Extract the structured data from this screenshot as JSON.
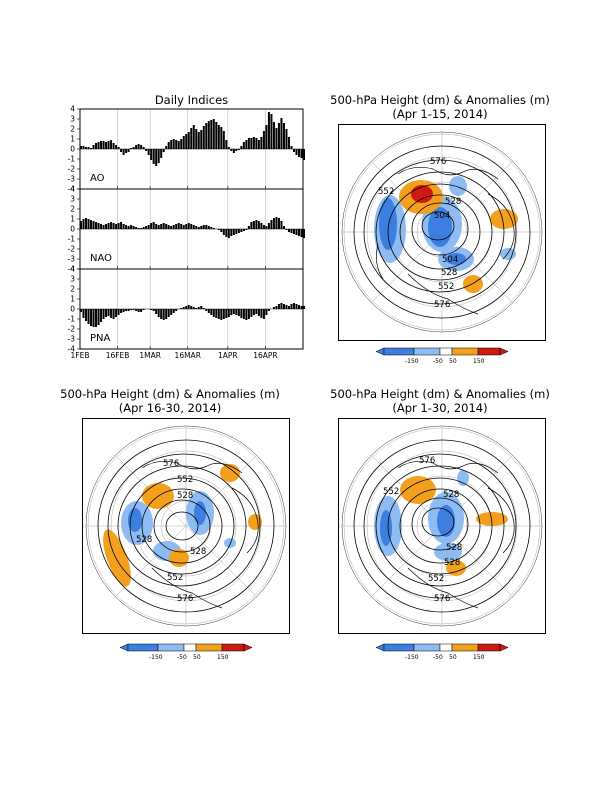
{
  "indices_panel": {
    "title": "Daily Indices",
    "yticks": [
      4,
      3,
      2,
      1,
      0,
      -1,
      -2,
      -3,
      -4
    ],
    "xtick_labels": [
      "1FEB",
      "16FEB",
      "1MAR",
      "16MAR",
      "1APR",
      "16APR"
    ]
  },
  "chart_data": [
    {
      "type": "bar",
      "name": "AO",
      "x_start": "1FEB",
      "x_end": "30APR",
      "ylim": [
        -4,
        4
      ],
      "values": [
        0.3,
        0.3,
        0.2,
        0.2,
        0.1,
        0.4,
        0.6,
        0.7,
        0.8,
        0.8,
        0.7,
        0.8,
        0.9,
        0.6,
        0.4,
        0.2,
        -0.3,
        -0.6,
        -0.4,
        -0.3,
        0.1,
        0.2,
        0.4,
        0.5,
        0.4,
        0.2,
        -0.2,
        -0.6,
        -1.1,
        -1.5,
        -1.7,
        -1.4,
        -0.9,
        -0.3,
        0.3,
        0.7,
        0.9,
        1.0,
        0.9,
        0.8,
        1.0,
        1.3,
        1.5,
        1.7,
        2.1,
        2.4,
        2.0,
        1.7,
        1.9,
        2.3,
        2.6,
        2.8,
        2.9,
        3.0,
        2.7,
        2.4,
        2.2,
        1.8,
        0.9,
        0.2,
        -0.2,
        -0.4,
        -0.2,
        -0.1,
        0.3,
        0.7,
        0.9,
        1.1,
        1.1,
        1.2,
        1.1,
        0.9,
        1.2,
        1.8,
        2.4,
        3.7,
        3.5,
        2.7,
        2.1,
        2.6,
        3.1,
        2.6,
        2.0,
        1.2,
        0.3,
        -0.3,
        -0.6,
        -0.8,
        -0.9,
        -1.1
      ]
    },
    {
      "type": "bar",
      "name": "NAO",
      "x_start": "1FEB",
      "x_end": "30APR",
      "ylim": [
        -4,
        4
      ],
      "values": [
        0.8,
        1.0,
        1.1,
        1.0,
        0.9,
        0.8,
        0.7,
        0.6,
        0.5,
        0.4,
        0.5,
        0.6,
        0.7,
        0.6,
        0.5,
        0.6,
        0.7,
        0.5,
        0.4,
        0.3,
        0.4,
        0.3,
        0.2,
        0.1,
        0.1,
        0.2,
        0.3,
        0.4,
        0.6,
        0.7,
        0.5,
        0.4,
        0.5,
        0.6,
        0.5,
        0.4,
        0.3,
        0.4,
        0.5,
        0.6,
        0.5,
        0.4,
        0.5,
        0.6,
        0.5,
        0.4,
        0.3,
        0.2,
        0.3,
        0.4,
        0.4,
        0.3,
        0.2,
        0.1,
        0.0,
        -0.1,
        -0.3,
        -0.6,
        -0.8,
        -0.9,
        -0.7,
        -0.6,
        -0.5,
        -0.4,
        -0.3,
        -0.2,
        -0.1,
        0.3,
        0.7,
        0.8,
        0.9,
        0.8,
        0.6,
        0.4,
        0.3,
        0.6,
        0.9,
        1.1,
        1.2,
        1.1,
        0.8,
        0.3,
        -0.1,
        -0.3,
        -0.4,
        -0.5,
        -0.6,
        -0.7,
        -0.8,
        -0.9
      ]
    },
    {
      "type": "bar",
      "name": "PNA",
      "x_start": "1FEB",
      "x_end": "30APR",
      "ylim": [
        -4,
        4
      ],
      "values": [
        -0.3,
        -0.9,
        -1.2,
        -1.5,
        -1.7,
        -1.8,
        -1.8,
        -1.6,
        -1.3,
        -1.0,
        -0.8,
        -0.7,
        -0.9,
        -1.0,
        -0.8,
        -0.6,
        -0.4,
        -0.3,
        -0.2,
        -0.2,
        -0.1,
        -0.1,
        -0.2,
        -0.3,
        -0.3,
        -0.1,
        0.0,
        0.0,
        -0.1,
        -0.2,
        -0.5,
        -0.8,
        -1.0,
        -1.1,
        -1.0,
        -0.8,
        -0.6,
        -0.4,
        -0.2,
        0.0,
        0.1,
        0.2,
        0.3,
        0.4,
        0.3,
        0.2,
        0.1,
        0.2,
        0.3,
        0.1,
        -0.2,
        -0.4,
        -0.6,
        -0.8,
        -0.9,
        -1.0,
        -1.1,
        -1.0,
        -0.9,
        -0.8,
        -0.6,
        -0.5,
        -0.6,
        -0.7,
        -0.9,
        -1.0,
        -1.1,
        -1.0,
        -0.8,
        -0.6,
        -0.5,
        -0.7,
        -0.9,
        -1.0,
        -0.6,
        -0.2,
        0.0,
        0.2,
        0.3,
        0.5,
        0.6,
        0.5,
        0.4,
        0.3,
        0.5,
        0.6,
        0.5,
        0.4,
        0.3,
        0.3
      ]
    }
  ],
  "maps": [
    {
      "title_line1": "500-hPa Height (dm) & Anomalies (m)",
      "title_line2": "(Apr 1-15, 2014)",
      "contour_labels": [
        "576",
        "552",
        "528",
        "504",
        "504",
        "528",
        "552",
        "576"
      ]
    },
    {
      "title_line1": "500-hPa Height (dm) & Anomalies (m)",
      "title_line2": "(Apr 16-30, 2014)",
      "contour_labels": [
        "576",
        "552",
        "528",
        "528",
        "528",
        "552",
        "576"
      ]
    },
    {
      "title_line1": "500-hPa Height (dm) & Anomalies (m)",
      "title_line2": "(Apr 1-30, 2014)",
      "contour_labels": [
        "576",
        "552",
        "528",
        "528",
        "528",
        "552",
        "576"
      ]
    }
  ],
  "colorbar": {
    "labels": [
      "-150",
      "-50",
      "50",
      "150"
    ],
    "colors": {
      "strong_negative": "#3d7fe0",
      "negative": "#8ebcf2",
      "neutral": "#ffffff",
      "positive": "#f2a01d",
      "strong_positive": "#cc1a12"
    }
  }
}
